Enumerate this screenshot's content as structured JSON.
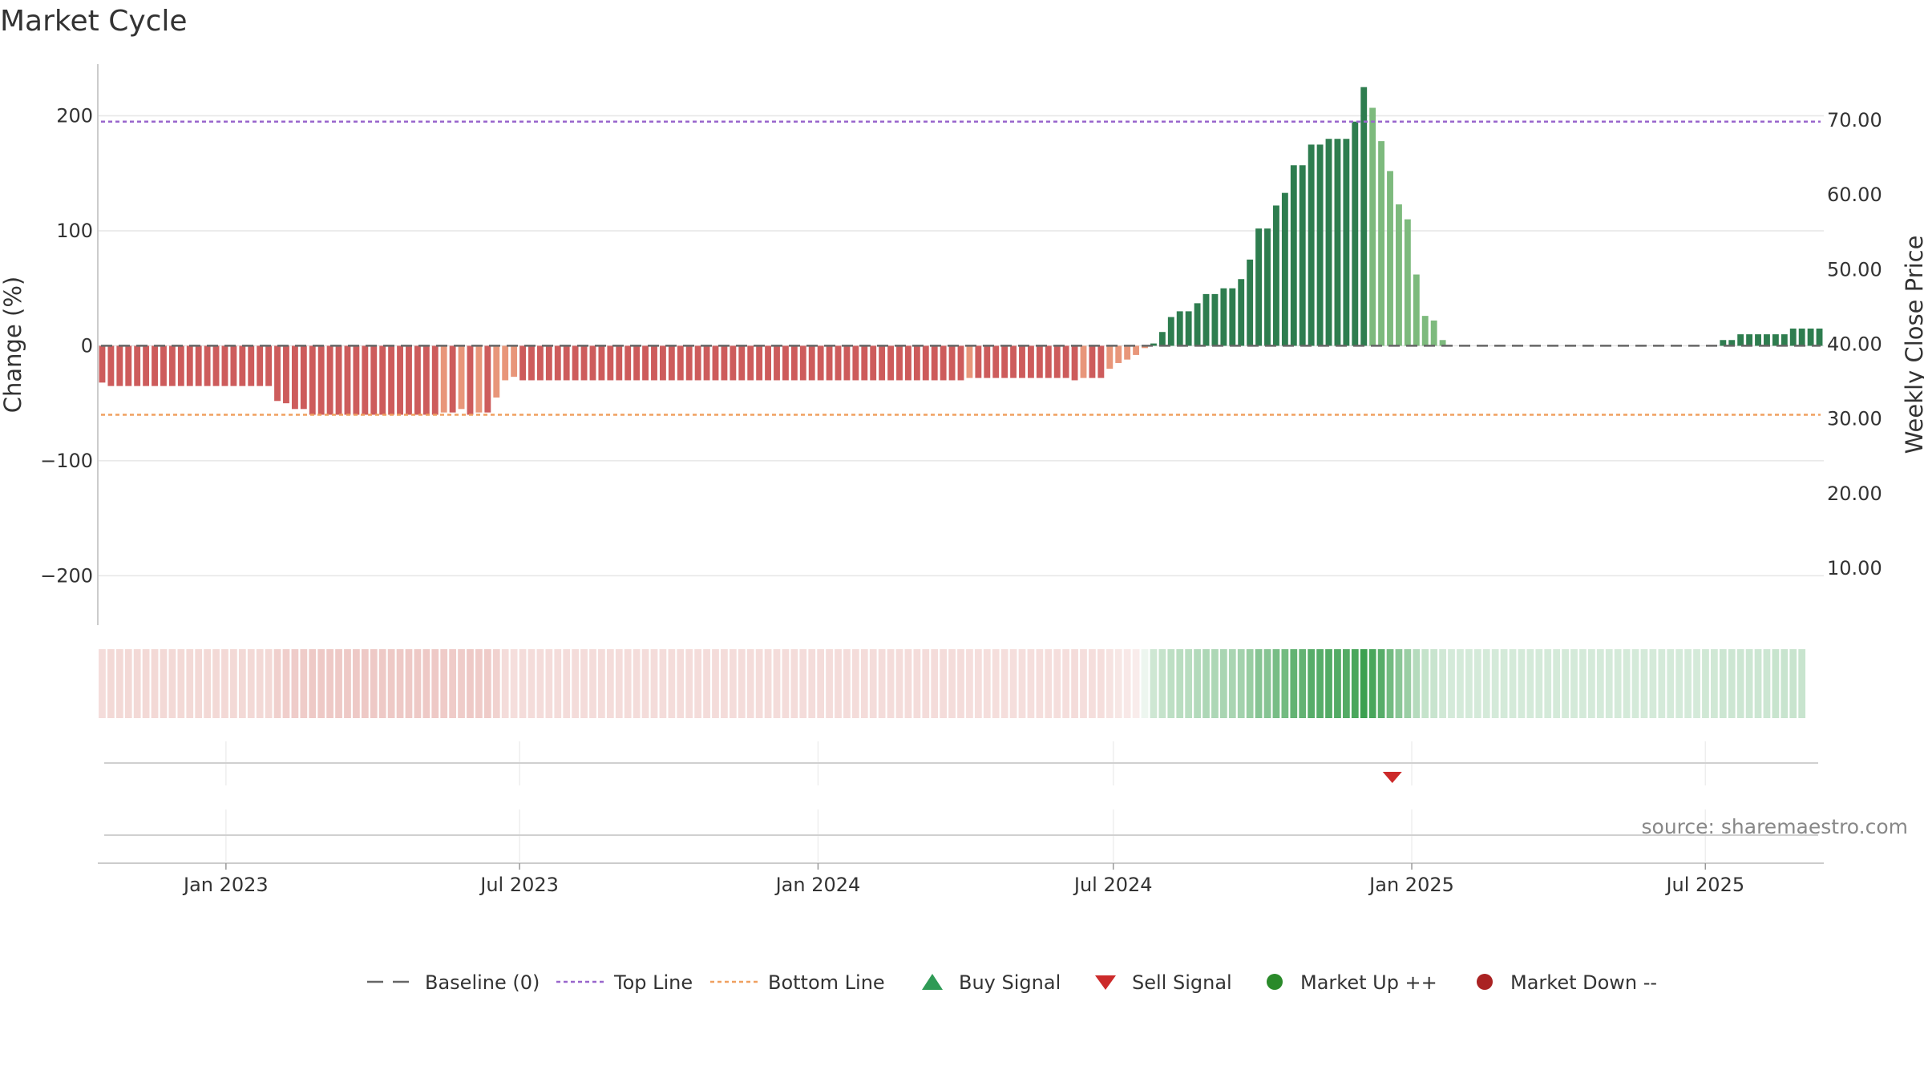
{
  "chart_data": {
    "type": "bar",
    "title": "Market Cycle",
    "ylabel": "Change (%)",
    "y2label": "Weekly Close Price",
    "ylim": [
      -243,
      245
    ],
    "y2lim": [
      2.4,
      77.5
    ],
    "yticks": [
      200,
      100,
      0,
      -100,
      -200
    ],
    "ytick_labels": [
      "200",
      "100",
      "0",
      "−100",
      "−200"
    ],
    "y2ticks": [
      70,
      60,
      50,
      40,
      30,
      20,
      10
    ],
    "y2tick_labels": [
      "70.00",
      "60.00",
      "50.00",
      "40.00",
      "30.00",
      "20.00",
      "10.00"
    ],
    "x_start": "2022-10-14",
    "x_end": "2025-09-12",
    "xticks": [
      {
        "date": "2023-01-01",
        "label": "Jan 2023"
      },
      {
        "date": "2023-07-01",
        "label": "Jul 2023"
      },
      {
        "date": "2024-01-01",
        "label": "Jan 2024"
      },
      {
        "date": "2024-07-01",
        "label": "Jul 2024"
      },
      {
        "date": "2025-01-01",
        "label": "Jan 2025"
      },
      {
        "date": "2025-07-01",
        "label": "Jul 2025"
      }
    ],
    "reference_lines": [
      {
        "name": "Top Line",
        "value": 195,
        "color": "#9966cc",
        "style": "dotted"
      },
      {
        "name": "Bottom Line",
        "value": -60,
        "color": "#f0a060",
        "style": "dotted"
      },
      {
        "name": "Baseline (0)",
        "value": 0,
        "color": "#666666",
        "style": "dashed"
      }
    ],
    "series": [
      {
        "values": [
          -32,
          -35,
          -35,
          -35,
          -35,
          -35,
          -35,
          -35,
          -35,
          -35,
          -35,
          -35,
          -35,
          -35,
          -35,
          -35,
          -35,
          -35,
          -35,
          -35,
          -48,
          -50,
          -55,
          -55,
          -60,
          -60,
          -60,
          -60,
          -60,
          -60,
          -60,
          -60,
          -60,
          -60,
          -60,
          -60,
          -60,
          -60,
          -60,
          -58,
          -58,
          -55,
          -60,
          -58,
          -58,
          -45,
          -30,
          -27,
          -30,
          -30,
          -30,
          -30,
          -30,
          -30,
          -30,
          -30,
          -30,
          -30,
          -30,
          -30,
          -30,
          -30,
          -30,
          -30,
          -30,
          -30,
          -30,
          -30,
          -30,
          -30,
          -30,
          -30,
          -30,
          -30,
          -30,
          -30,
          -30,
          -30,
          -30,
          -30,
          -30,
          -30,
          -30,
          -30,
          -30,
          -30,
          -30,
          -30,
          -30,
          -30,
          -30,
          -30,
          -30,
          -30,
          -30,
          -30,
          -30,
          -30,
          -30,
          -28,
          -28,
          -28,
          -28,
          -28,
          -28,
          -28,
          -28,
          -28,
          -28,
          -28,
          -28,
          -30,
          -28,
          -28,
          -28,
          -20,
          -15,
          -12,
          -8,
          -2,
          2,
          12,
          25,
          30,
          30,
          37,
          45,
          45,
          50,
          50,
          58,
          75,
          102,
          102,
          122,
          133,
          157,
          157,
          175,
          175,
          180,
          180,
          180,
          195,
          225,
          207,
          178,
          152,
          123,
          110,
          62,
          26,
          22,
          5,
          0,
          0,
          0,
          0,
          0,
          0,
          0,
          0,
          0,
          0,
          0,
          0,
          0,
          0,
          0,
          0,
          0,
          0,
          0,
          0,
          0,
          0,
          0,
          0,
          0,
          0,
          0,
          0,
          0,
          0,
          0,
          5,
          5,
          10,
          10,
          10,
          10,
          10,
          10,
          15,
          15,
          15,
          15
        ]
      }
    ],
    "heat_strip": [
      0.2,
      0.22,
      0.22,
      0.22,
      0.22,
      0.22,
      0.22,
      0.22,
      0.22,
      0.22,
      0.22,
      0.22,
      0.22,
      0.22,
      0.22,
      0.22,
      0.22,
      0.22,
      0.22,
      0.22,
      0.27,
      0.28,
      0.29,
      0.29,
      0.31,
      0.31,
      0.31,
      0.31,
      0.31,
      0.31,
      0.31,
      0.31,
      0.31,
      0.31,
      0.31,
      0.31,
      0.31,
      0.31,
      0.31,
      0.3,
      0.3,
      0.29,
      0.31,
      0.3,
      0.3,
      0.26,
      0.2,
      0.19,
      0.2,
      0.2,
      0.2,
      0.2,
      0.2,
      0.2,
      0.2,
      0.2,
      0.2,
      0.2,
      0.2,
      0.2,
      0.2,
      0.2,
      0.2,
      0.2,
      0.2,
      0.2,
      0.2,
      0.2,
      0.2,
      0.2,
      0.2,
      0.2,
      0.2,
      0.2,
      0.2,
      0.2,
      0.2,
      0.2,
      0.2,
      0.2,
      0.2,
      0.2,
      0.2,
      0.2,
      0.2,
      0.2,
      0.2,
      0.2,
      0.2,
      0.2,
      0.2,
      0.2,
      0.2,
      0.2,
      0.2,
      0.2,
      0.2,
      0.2,
      0.2,
      0.19,
      0.19,
      0.19,
      0.19,
      0.19,
      0.19,
      0.19,
      0.19,
      0.19,
      0.19,
      0.19,
      0.19,
      0.2,
      0.19,
      0.19,
      0.19,
      0.16,
      0.14,
      0.13,
      0.11,
      0.09,
      0.25,
      0.3,
      0.34,
      0.36,
      0.36,
      0.39,
      0.42,
      0.42,
      0.44,
      0.44,
      0.47,
      0.53,
      0.62,
      0.62,
      0.69,
      0.72,
      0.8,
      0.8,
      0.86,
      0.86,
      0.88,
      0.88,
      0.88,
      0.93,
      1.0,
      0.94,
      0.86,
      0.72,
      0.6,
      0.52,
      0.38,
      0.3,
      0.28,
      0.24,
      0.22,
      0.22,
      0.22,
      0.22,
      0.22,
      0.22,
      0.22,
      0.22,
      0.22,
      0.22,
      0.22,
      0.22,
      0.22,
      0.22,
      0.22,
      0.22,
      0.22,
      0.22,
      0.22,
      0.22,
      0.22,
      0.22,
      0.22,
      0.22,
      0.22,
      0.22,
      0.22,
      0.22,
      0.22,
      0.24,
      0.24,
      0.26,
      0.26,
      0.26,
      0.26,
      0.26,
      0.26,
      0.28,
      0.28,
      0.28,
      0.28
    ],
    "signals": [
      {
        "type": "sell",
        "date": "2024-12-20"
      }
    ],
    "legend": [
      {
        "label": "Baseline (0)",
        "marker": "dashed-line",
        "color": "#666666"
      },
      {
        "label": "Top Line",
        "marker": "dotted-line",
        "color": "#9966cc"
      },
      {
        "label": "Bottom Line",
        "marker": "dotted-line",
        "color": "#f0a060"
      },
      {
        "label": "Buy Signal",
        "marker": "triangle-up",
        "color": "#2e9a55"
      },
      {
        "label": "Sell Signal",
        "marker": "triangle-down",
        "color": "#cc2a2a"
      },
      {
        "label": "Market Up ++",
        "marker": "circle",
        "color": "#2a8a2a"
      },
      {
        "label": "Market Down --",
        "marker": "circle",
        "color": "#aa2222"
      }
    ],
    "legend_position": "bottom-center",
    "source": "source: sharemaestro.com",
    "colors": {
      "strong_up": "#2e7d4f",
      "weak_up": "#7dba7d",
      "strong_down": "#cd5c5c",
      "weak_down": "#e8967a",
      "grid": "#e6e6e6",
      "axis": "#cccccc"
    }
  }
}
